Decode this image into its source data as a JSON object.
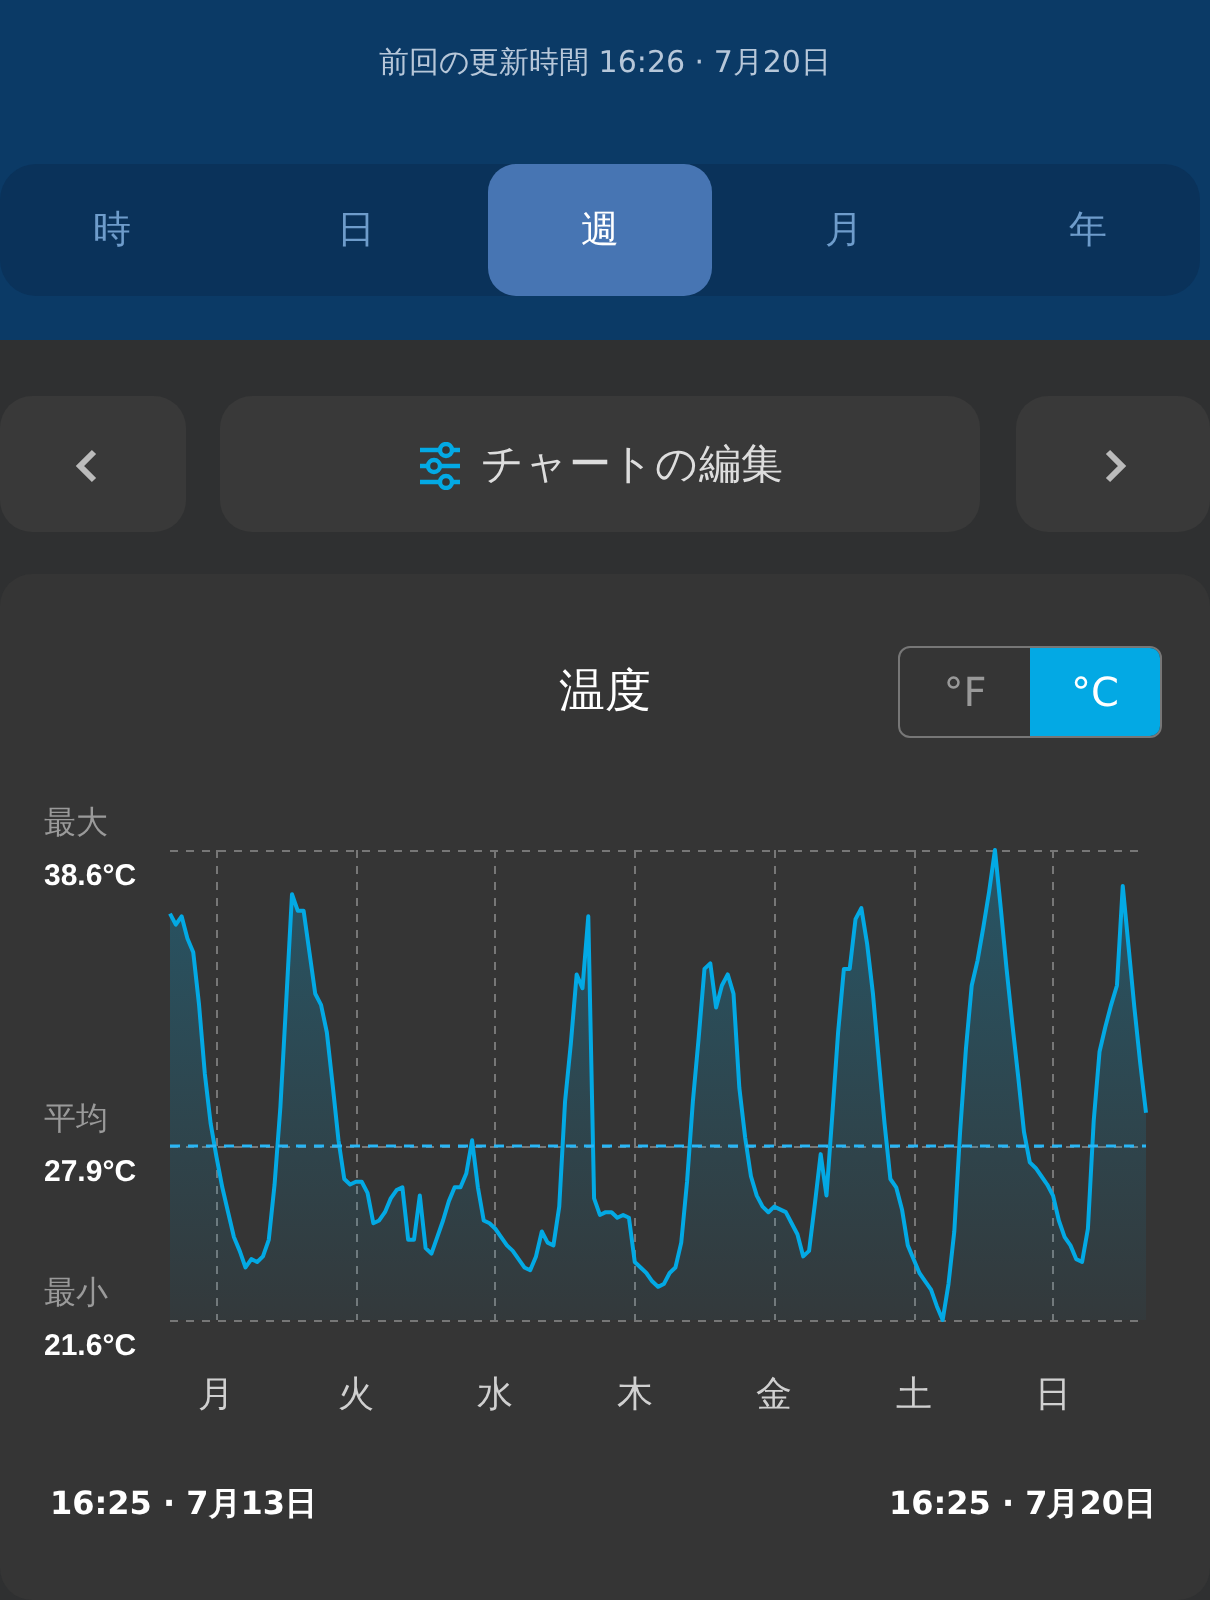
{
  "chart_data": {
    "type": "area",
    "title": "温度",
    "annotations": [
      "前回の更新時間 16:26 · 7月20日",
      "時",
      "日",
      "週",
      "月",
      "年",
      "チャートの編集",
      "°F",
      "°C",
      "16:25 · 7月13日",
      "16:25 · 7月20日",
      "最小",
      "平均",
      "最大"
    ],
    "categories": [
      null,
      null,
      null,
      null,
      null,
      null,
      null,
      null,
      "月",
      null,
      null,
      null,
      null,
      null,
      null,
      null,
      null,
      null,
      null,
      null,
      null,
      null,
      null,
      null,
      null,
      null,
      null,
      null,
      null,
      null,
      null,
      null,
      "火",
      null,
      null,
      null,
      null,
      null,
      null,
      null,
      null,
      null,
      null,
      null,
      null,
      null,
      null,
      null,
      null,
      null,
      null,
      null,
      null,
      null,
      null,
      null,
      "水",
      null,
      null,
      null,
      null,
      null,
      null,
      null,
      null,
      null,
      null,
      null,
      null,
      null,
      null,
      null,
      null,
      null,
      null,
      null,
      null,
      null,
      null,
      null,
      "木",
      null,
      null,
      null,
      null,
      null,
      null,
      null,
      null,
      null,
      null,
      null,
      null,
      null,
      null,
      null,
      null,
      null,
      null,
      null,
      null,
      null,
      null,
      null,
      "金",
      null,
      null,
      null,
      null,
      null,
      null,
      null,
      null,
      null,
      null,
      null,
      null,
      null,
      null,
      null,
      null,
      null,
      null,
      null,
      null,
      null,
      null,
      null,
      "土",
      null,
      null,
      null,
      null,
      null,
      null,
      null,
      null,
      null,
      null,
      null,
      null,
      null,
      null,
      null,
      null,
      null,
      null,
      null,
      null,
      null,
      null,
      null,
      "日",
      null,
      null,
      null,
      null,
      null,
      null,
      null,
      null,
      null,
      null,
      null,
      null,
      null,
      null,
      null,
      null
    ],
    "series": [
      {
        "color": "#03a9e4",
        "values": [
          36.3,
          35.9,
          36.2,
          35.4,
          34.9,
          33.0,
          30.5,
          28.7,
          27.5,
          26.4,
          25.5,
          24.6,
          24.1,
          23.5,
          23.8,
          23.7,
          23.9,
          24.5,
          26.5,
          29.3,
          33.1,
          37.0,
          36.4,
          36.4,
          34.9,
          33.4,
          33.0,
          32.0,
          30.1,
          28.1,
          26.7,
          26.5,
          26.6,
          26.6,
          26.2,
          25.1,
          25.2,
          25.5,
          26.0,
          26.3,
          26.4,
          24.5,
          24.5,
          26.1,
          24.2,
          24.0,
          24.6,
          25.2,
          25.9,
          26.4,
          26.4,
          26.9,
          28.1,
          26.4,
          25.2,
          25.1,
          24.9,
          24.6,
          24.3,
          24.1,
          23.8,
          23.5,
          23.4,
          23.9,
          24.8,
          24.4,
          24.3,
          25.7,
          29.5,
          31.6,
          34.1,
          33.6,
          36.2,
          26.0,
          25.4,
          25.5,
          25.5,
          25.3,
          25.4,
          25.3,
          23.7,
          23.5,
          23.3,
          23.0,
          22.8,
          22.9,
          23.3,
          23.5,
          24.4,
          26.6,
          29.5,
          31.8,
          34.3,
          34.5,
          32.9,
          33.7,
          34.1,
          33.4,
          30.0,
          28.2,
          26.8,
          26.1,
          25.7,
          25.5,
          25.7,
          25.6,
          25.5,
          25.1,
          24.7,
          23.9,
          24.1,
          25.8,
          27.6,
          26.1,
          29.0,
          32.0,
          34.3,
          34.3,
          36.1,
          36.5,
          35.2,
          33.4,
          31.0,
          28.7,
          26.7,
          26.4,
          25.6,
          24.3,
          23.8,
          23.3,
          23.0,
          22.7,
          22.1,
          21.6,
          22.9,
          24.8,
          28.4,
          31.4,
          33.7,
          34.6,
          35.8,
          37.1,
          38.6,
          36.5,
          34.3,
          32.3,
          30.4,
          28.4,
          27.3,
          27.1,
          26.8,
          26.5,
          26.1,
          25.2,
          24.6,
          24.3,
          23.8,
          23.7,
          24.9,
          28.8,
          31.3,
          32.2,
          33.0,
          33.7,
          37.3,
          35.1,
          32.9,
          30.9,
          29.1
        ]
      }
    ],
    "ylim": [
      21.6,
      38.6
    ],
    "yticks": [
      {
        "value": 21.6,
        "label": "21.6°C"
      },
      {
        "value": 27.9,
        "label": "27.9°C"
      },
      {
        "value": 38.6,
        "label": "38.6°C"
      }
    ],
    "ref_lines": [
      {
        "axis": "y",
        "value": 27.9,
        "color": "#29b6f6",
        "line_style": "dashed"
      }
    ],
    "grid": true,
    "marker": "none"
  }
}
